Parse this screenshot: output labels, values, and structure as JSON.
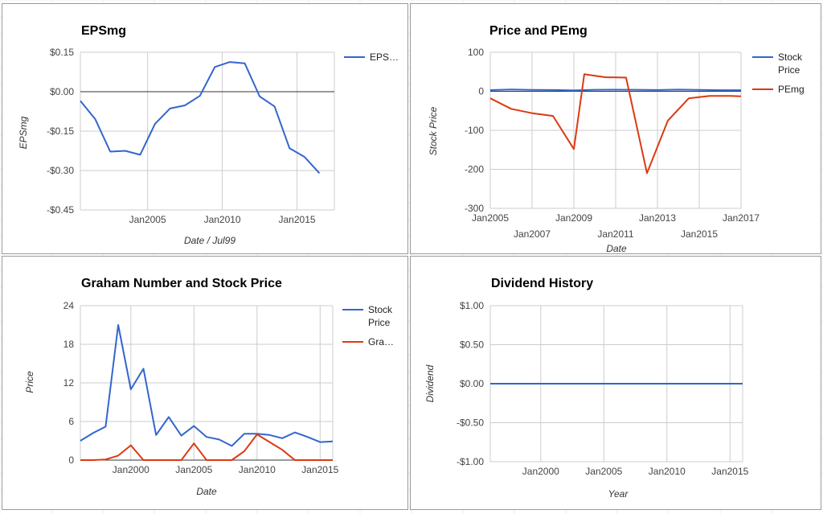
{
  "colors": {
    "blue": "#3366cc",
    "red": "#dc3912"
  },
  "chart_data": [
    {
      "id": "eps",
      "type": "line",
      "title": "EPSmg",
      "xlabel": "Date / Jul99",
      "ylabel": "EPSmg",
      "xlim": [
        2000.5,
        2017.5
      ],
      "ylim": [
        -0.45,
        0.15
      ],
      "x_ticks": [
        {
          "v": 2005.0,
          "label": "Jan2005"
        },
        {
          "v": 2010.0,
          "label": "Jan2010"
        },
        {
          "v": 2015.0,
          "label": "Jan2015"
        }
      ],
      "y_ticks": [
        {
          "v": 0.15,
          "label": "$0.15"
        },
        {
          "v": 0.0,
          "label": "$0.00"
        },
        {
          "v": -0.15,
          "label": "-$0.15"
        },
        {
          "v": -0.3,
          "label": "-$0.30"
        },
        {
          "v": -0.45,
          "label": "-$0.45"
        }
      ],
      "zero_line": true,
      "legend": "right",
      "series": [
        {
          "name": "EPS…",
          "color": "blue",
          "x": [
            2000.5,
            2001.5,
            2002.5,
            2003.5,
            2004.5,
            2005.5,
            2006.5,
            2007.5,
            2008.5,
            2009.5,
            2010.5,
            2011.5,
            2012.5,
            2013.5,
            2014.5,
            2015.5,
            2016.5
          ],
          "y": [
            -0.035,
            -0.105,
            -0.228,
            -0.225,
            -0.24,
            -0.122,
            -0.064,
            -0.052,
            -0.016,
            0.094,
            0.113,
            0.108,
            -0.018,
            -0.056,
            -0.215,
            -0.248,
            -0.31
          ]
        }
      ]
    },
    {
      "id": "pe",
      "type": "line",
      "title": "Price and PEmg",
      "xlabel": "Date",
      "ylabel": "Stock Price",
      "xlim": [
        2005.0,
        2017.0
      ],
      "ylim": [
        -300,
        100
      ],
      "x_ticks": [
        {
          "v": 2005.0,
          "label": "Jan2005",
          "row": 0
        },
        {
          "v": 2007.0,
          "label": "Jan2007",
          "row": 1
        },
        {
          "v": 2009.0,
          "label": "Jan2009",
          "row": 0
        },
        {
          "v": 2011.0,
          "label": "Jan2011",
          "row": 1
        },
        {
          "v": 2013.0,
          "label": "Jan2013",
          "row": 0
        },
        {
          "v": 2015.0,
          "label": "Jan2015",
          "row": 1
        },
        {
          "v": 2017.0,
          "label": "Jan2017",
          "row": 0
        }
      ],
      "y_ticks": [
        {
          "v": 100,
          "label": "100"
        },
        {
          "v": 0,
          "label": "0"
        },
        {
          "v": -100,
          "label": "-100"
        },
        {
          "v": -200,
          "label": "-200"
        },
        {
          "v": -300,
          "label": "-300"
        }
      ],
      "zero_line": true,
      "legend": "right",
      "series": [
        {
          "name": "Stock Price",
          "color": "blue",
          "x": [
            2005.0,
            2006.0,
            2007.0,
            2008.0,
            2009.0,
            2010.0,
            2011.0,
            2012.0,
            2013.0,
            2014.0,
            2015.0,
            2016.0,
            2017.0
          ],
          "y": [
            3.0,
            4.5,
            3.8,
            3.2,
            2.2,
            4.0,
            4.2,
            3.9,
            3.3,
            4.3,
            3.6,
            2.8,
            2.9
          ]
        },
        {
          "name": "PEmg",
          "color": "red",
          "x": [
            2005.0,
            2006.0,
            2007.0,
            2008.0,
            2009.0,
            2009.5,
            2010.5,
            2011.5,
            2012.5,
            2013.5,
            2014.5,
            2015.5,
            2016.5,
            2017.0
          ],
          "y": [
            -18,
            -45,
            -56,
            -63,
            -148,
            44,
            36,
            35,
            -210,
            -75,
            -18,
            -12,
            -12,
            -13
          ]
        }
      ]
    },
    {
      "id": "graham",
      "type": "line",
      "title": "Graham Number and Stock Price",
      "xlabel": "Date",
      "ylabel": "Price",
      "xlim": [
        1996.0,
        2016.0
      ],
      "ylim": [
        0,
        24
      ],
      "x_ticks": [
        {
          "v": 2000.0,
          "label": "Jan2000"
        },
        {
          "v": 2005.0,
          "label": "Jan2005"
        },
        {
          "v": 2010.0,
          "label": "Jan2010"
        },
        {
          "v": 2015.0,
          "label": "Jan2015"
        }
      ],
      "y_ticks": [
        {
          "v": 24,
          "label": "24"
        },
        {
          "v": 18,
          "label": "18"
        },
        {
          "v": 12,
          "label": "12"
        },
        {
          "v": 6,
          "label": "6"
        },
        {
          "v": 0,
          "label": "0"
        }
      ],
      "zero_line": true,
      "legend": "right",
      "series": [
        {
          "name": "Stock Price",
          "color": "blue",
          "x": [
            1996.0,
            1997.0,
            1998.0,
            1999.0,
            2000.0,
            2001.0,
            2002.0,
            2003.0,
            2004.0,
            2005.0,
            2006.0,
            2007.0,
            2008.0,
            2009.0,
            2010.0,
            2011.0,
            2012.0,
            2013.0,
            2014.0,
            2015.0,
            2016.0
          ],
          "y": [
            3.0,
            4.2,
            5.2,
            21.0,
            11.0,
            14.2,
            3.9,
            6.7,
            3.8,
            5.3,
            3.6,
            3.2,
            2.2,
            4.1,
            4.1,
            3.9,
            3.4,
            4.3,
            3.6,
            2.8,
            2.9
          ]
        },
        {
          "name": "Gra…",
          "color": "red",
          "x": [
            1996.0,
            1997.0,
            1998.0,
            1999.0,
            2000.0,
            2001.0,
            2002.0,
            2003.0,
            2004.0,
            2005.0,
            2006.0,
            2007.0,
            2008.0,
            2009.0,
            2010.0,
            2011.0,
            2012.0,
            2013.0,
            2014.0,
            2015.0,
            2016.0
          ],
          "y": [
            0,
            0,
            0.1,
            0.7,
            2.3,
            0,
            0,
            0,
            0,
            2.6,
            0,
            0,
            0,
            1.4,
            4.0,
            2.8,
            1.6,
            0,
            0,
            0,
            0
          ]
        }
      ]
    },
    {
      "id": "div",
      "type": "line",
      "title": "Dividend History",
      "xlabel": "Year",
      "ylabel": "Dividend",
      "xlim": [
        1996.0,
        2016.0
      ],
      "ylim": [
        -1.0,
        1.0
      ],
      "x_ticks": [
        {
          "v": 2000.0,
          "label": "Jan2000"
        },
        {
          "v": 2005.0,
          "label": "Jan2005"
        },
        {
          "v": 2010.0,
          "label": "Jan2010"
        },
        {
          "v": 2015.0,
          "label": "Jan2015"
        }
      ],
      "y_ticks": [
        {
          "v": 1.0,
          "label": "$1.00"
        },
        {
          "v": 0.5,
          "label": "$0.50"
        },
        {
          "v": 0.0,
          "label": "$0.00"
        },
        {
          "v": -0.5,
          "label": "-$0.50"
        },
        {
          "v": -1.0,
          "label": "-$1.00"
        }
      ],
      "zero_line": false,
      "legend": "none",
      "series": [
        {
          "name": "",
          "color": "blue",
          "x": [
            1996.0,
            2016.0
          ],
          "y": [
            0.0,
            0.0
          ]
        }
      ]
    }
  ]
}
